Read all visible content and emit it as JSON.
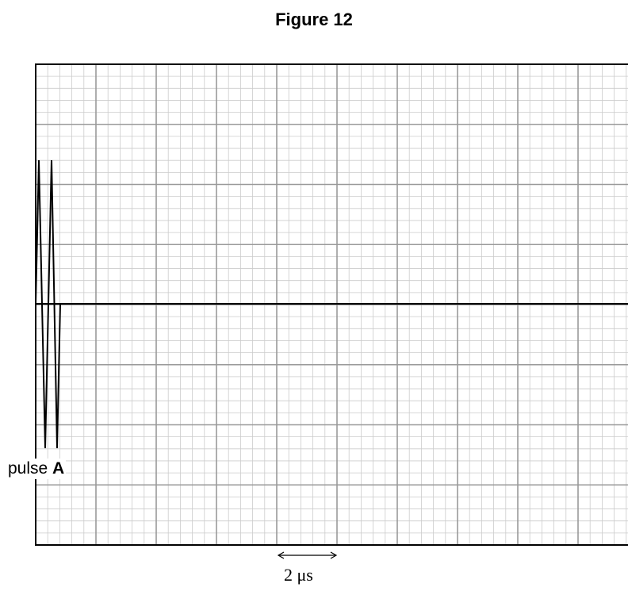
{
  "figure": {
    "title": "Figure 12"
  },
  "grid": {
    "major_columns": 10,
    "major_rows": 8,
    "minor_per_major": 5,
    "major_color": "#999999",
    "minor_color": "#cccccc",
    "border_color": "#000000"
  },
  "pulse": {
    "label_prefix": "pulse ",
    "label_letter": "A",
    "color": "#000000"
  },
  "time_scale": {
    "label": "2 μs",
    "spans_major_divisions": 1
  }
}
